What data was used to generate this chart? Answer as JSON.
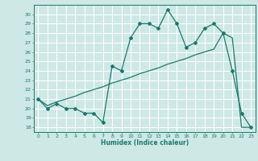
{
  "line1_x": [
    0,
    1,
    2,
    3,
    4,
    5,
    6,
    7,
    8,
    9,
    10,
    11,
    12,
    13,
    14,
    15,
    16,
    17,
    18,
    19,
    20,
    21,
    22,
    23
  ],
  "line1_y": [
    21,
    20,
    20.5,
    20,
    20,
    19.5,
    19.5,
    18.5,
    24.5,
    24,
    27.5,
    29,
    29,
    28.5,
    30.5,
    29,
    26.5,
    27,
    28.5,
    29,
    28,
    24,
    19.5,
    18
  ],
  "line2_x": [
    0,
    1,
    2,
    3,
    4,
    5,
    6,
    7,
    8,
    9,
    10,
    11,
    12,
    13,
    14,
    15,
    16,
    17,
    18,
    19,
    20,
    21,
    22,
    23
  ],
  "line2_y": [
    21,
    20.3,
    20.7,
    21.0,
    21.3,
    21.7,
    22.0,
    22.3,
    22.7,
    23.0,
    23.3,
    23.7,
    24.0,
    24.3,
    24.7,
    25.0,
    25.3,
    25.7,
    26.0,
    26.3,
    28.0,
    27.5,
    18.0,
    18.0
  ],
  "color": "#1a7a6e",
  "bg_color": "#cde8e5",
  "grid_color": "#ffffff",
  "xlabel": "Humidex (Indice chaleur)",
  "xlim": [
    -0.5,
    23.5
  ],
  "ylim": [
    17.5,
    31.0
  ],
  "xticks": [
    0,
    1,
    2,
    3,
    4,
    5,
    6,
    7,
    8,
    9,
    10,
    11,
    12,
    13,
    14,
    15,
    16,
    17,
    18,
    19,
    20,
    21,
    22,
    23
  ],
  "yticks": [
    18,
    19,
    20,
    21,
    22,
    23,
    24,
    25,
    26,
    27,
    28,
    29,
    30
  ]
}
